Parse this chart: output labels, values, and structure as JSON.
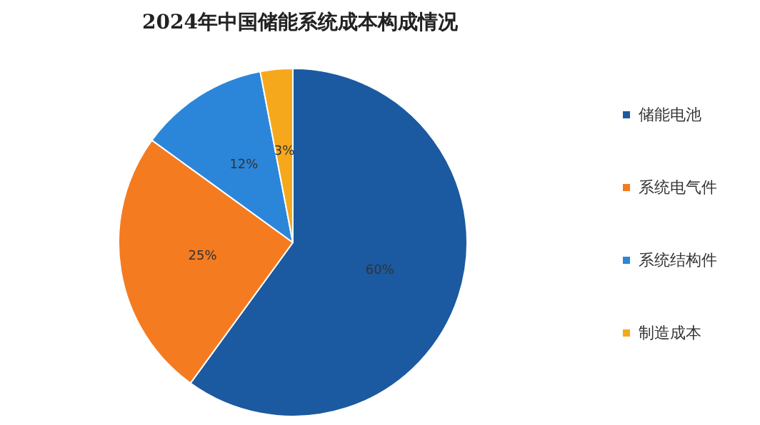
{
  "chart_data": {
    "type": "pie",
    "title": "2024年中国储能系统成本构成情况",
    "categories": [
      "储能电池",
      "系统电气件",
      "系统结构件",
      "制造成本"
    ],
    "values": [
      60,
      25,
      12,
      3
    ],
    "colors": [
      "#1b5aa0",
      "#f47b20",
      "#2b86d9",
      "#f6a81c"
    ],
    "value_labels": [
      "60%",
      "25%",
      "12%",
      "3%"
    ],
    "legend": "right"
  }
}
